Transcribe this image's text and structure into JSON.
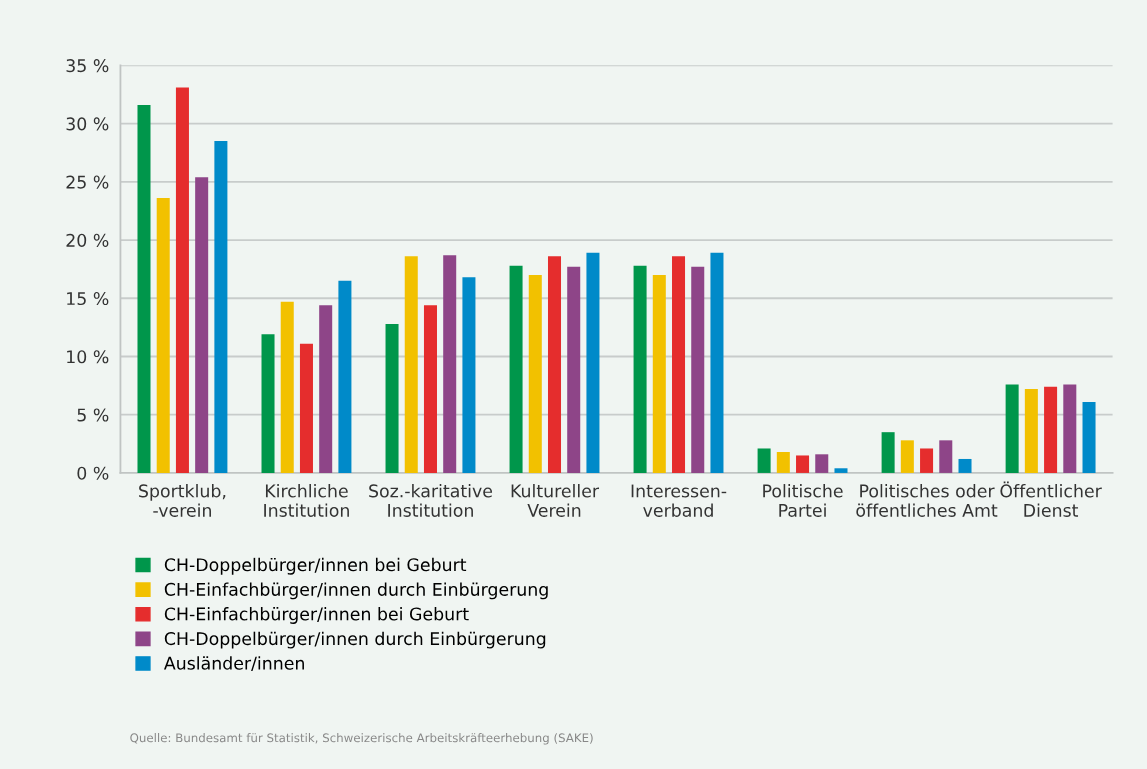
{
  "chart_data": {
    "type": "bar",
    "categories": [
      "Sportklub,\n-verein",
      "Kirchliche\nInstitution",
      "Soz.-karitative\nInstitution",
      "Kultureller\nVerein",
      "Interessen-\nverband",
      "Politische\nPartei",
      "Politisches oder\nöffentliches Amt",
      "Öffentlicher\nDienst"
    ],
    "series": [
      {
        "name": "CH-Doppelbürger/innen bei Geburt",
        "color": "#00964b",
        "values": [
          31.6,
          11.9,
          12.8,
          17.8,
          17.8,
          2.1,
          3.5,
          7.6
        ]
      },
      {
        "name": "CH-Einfachbürger/innen durch Einbürgerung",
        "color": "#f2c100",
        "values": [
          23.6,
          14.7,
          18.6,
          17.0,
          17.0,
          1.8,
          2.8,
          7.2
        ]
      },
      {
        "name": "CH-Einfachbürger/innen bei Geburt",
        "color": "#e52d2d",
        "values": [
          33.1,
          11.1,
          14.4,
          18.6,
          18.6,
          1.5,
          2.1,
          7.4
        ]
      },
      {
        "name": "CH-Doppelbürger/innen durch Einbürgerung",
        "color": "#8e4588",
        "values": [
          25.4,
          14.4,
          18.7,
          17.7,
          17.7,
          1.6,
          2.8,
          7.6
        ]
      },
      {
        "name": "Ausländer/innen",
        "color": "#008ac9",
        "values": [
          28.5,
          16.5,
          16.8,
          18.9,
          18.9,
          0.4,
          1.2,
          6.1
        ]
      }
    ],
    "ylim": [
      0,
      35
    ],
    "yticks": [
      {
        "value": 0,
        "label": "0 %"
      },
      {
        "value": 5,
        "label": "5 %"
      },
      {
        "value": 10,
        "label": "10 %"
      },
      {
        "value": 15,
        "label": "15 %"
      },
      {
        "value": 20,
        "label": "20 %"
      },
      {
        "value": 25,
        "label": "25 %"
      },
      {
        "value": 30,
        "label": "30 %"
      },
      {
        "value": 35,
        "label": "35 %"
      }
    ],
    "grid": "y",
    "legend": "bottom left",
    "annotations": [
      "Quelle: Bundesamt für Statistik, Schweizerische Arbeitskräfteerhebung (SAKE)"
    ]
  }
}
